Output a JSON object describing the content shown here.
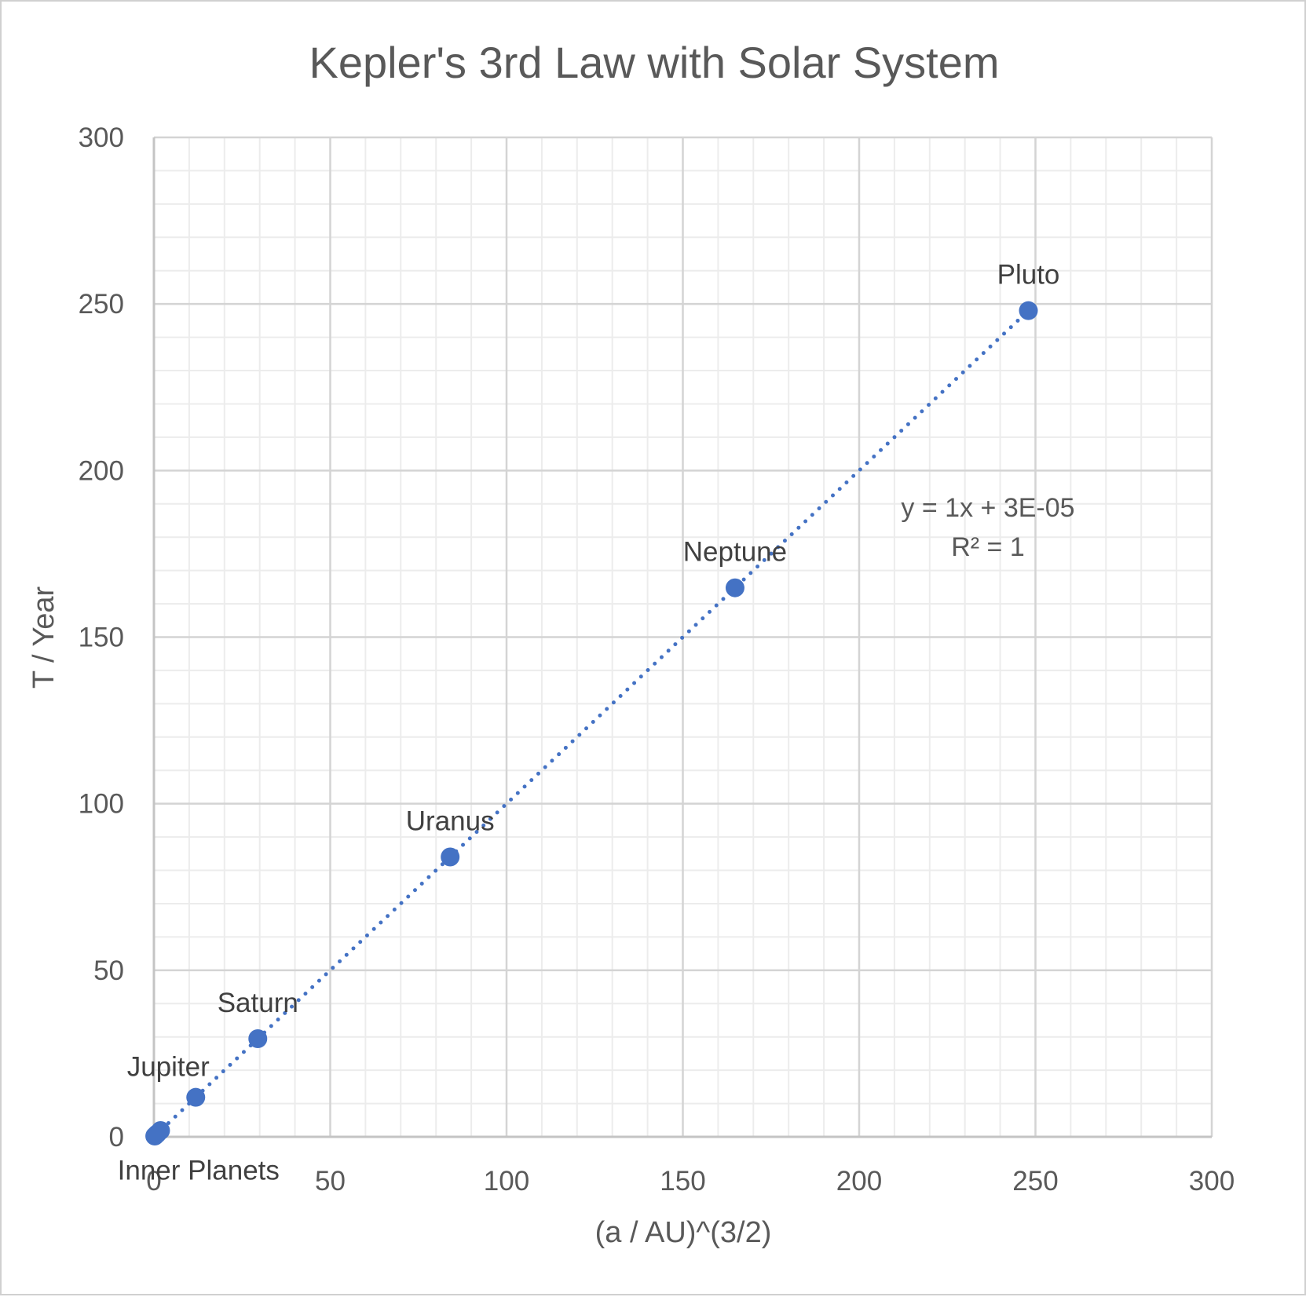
{
  "chart_data": {
    "type": "scatter",
    "title": "Kepler's 3rd Law with Solar System",
    "xlabel": "(a / AU)^(3/2)",
    "ylabel": "T / Year",
    "xlim": [
      0,
      300
    ],
    "ylim": [
      0,
      300
    ],
    "x_ticks": [
      0,
      50,
      100,
      150,
      200,
      250,
      300
    ],
    "y_ticks": [
      0,
      50,
      100,
      150,
      200,
      250,
      300
    ],
    "major_grid": true,
    "minor_grid": true,
    "legend": "none",
    "marker_color": "#4472C4",
    "trendline": {
      "type": "linear",
      "style": "dotted",
      "color": "#4472C4",
      "slope": 1,
      "intercept": 3e-05,
      "equation": "y = 1x + 3E-05",
      "r_squared": "R² = 1"
    },
    "series": [
      {
        "points": [
          {
            "x": 0.24,
            "y": 0.24,
            "label": ""
          },
          {
            "x": 0.62,
            "y": 0.62,
            "label": "Inner Planets"
          },
          {
            "x": 1.0,
            "y": 1.0,
            "label": ""
          },
          {
            "x": 1.88,
            "y": 1.88,
            "label": ""
          },
          {
            "x": 11.86,
            "y": 11.86,
            "label": "Jupiter"
          },
          {
            "x": 29.46,
            "y": 29.46,
            "label": "Saturn"
          },
          {
            "x": 84.01,
            "y": 84.01,
            "label": "Uranus"
          },
          {
            "x": 164.8,
            "y": 164.8,
            "label": "Neptune"
          },
          {
            "x": 248.0,
            "y": 248.0,
            "label": "Pluto"
          }
        ]
      }
    ]
  }
}
